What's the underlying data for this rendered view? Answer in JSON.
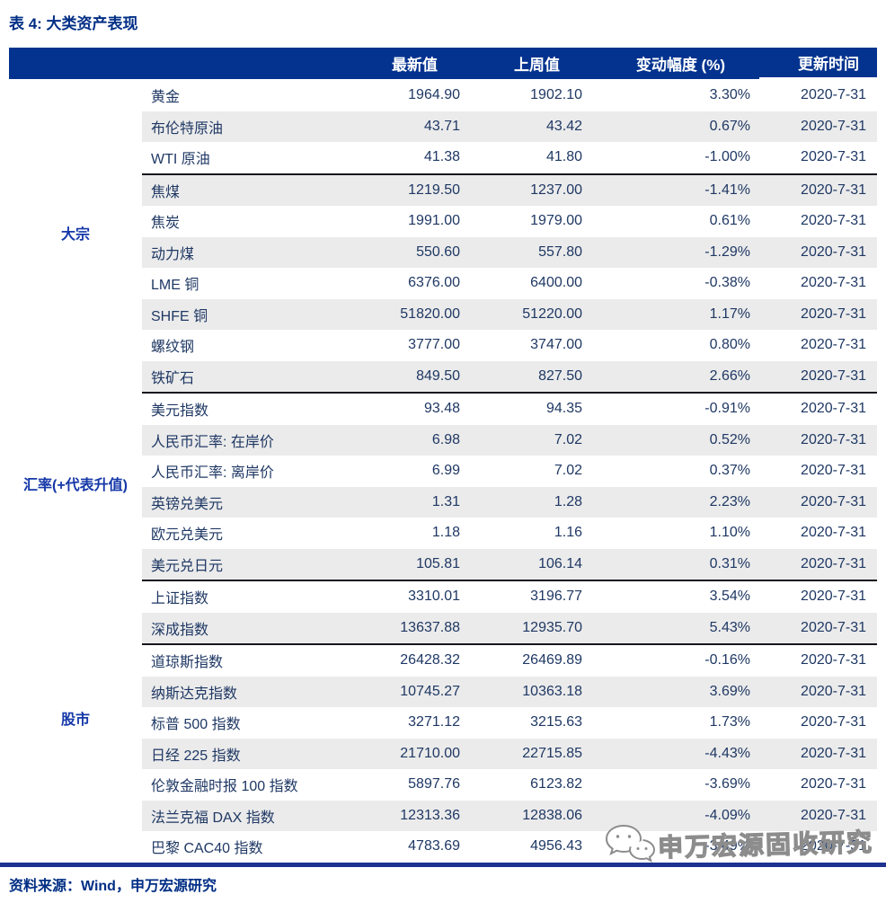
{
  "title": "表 4: 大类资产表现",
  "columns": {
    "latest": "最新值",
    "last_week": "上周值",
    "change": "变动幅度 (%)",
    "date": "更新时间"
  },
  "categories": [
    {
      "label": "大宗",
      "start": 0,
      "span": 10
    },
    {
      "label": "汇率(+代表升值)",
      "start": 10,
      "span": 6
    },
    {
      "label": "股市",
      "start": 16,
      "span": 9
    }
  ],
  "rows": [
    {
      "name": "黄金",
      "latest": "1964.90",
      "last_week": "1902.10",
      "change": "3.30%",
      "date": "2020-7-31"
    },
    {
      "name": "布伦特原油",
      "latest": "43.71",
      "last_week": "43.42",
      "change": "0.67%",
      "date": "2020-7-31"
    },
    {
      "name": "WTI 原油",
      "latest": "41.38",
      "last_week": "41.80",
      "change": "-1.00%",
      "date": "2020-7-31"
    },
    {
      "name": "焦煤",
      "latest": "1219.50",
      "last_week": "1237.00",
      "change": "-1.41%",
      "date": "2020-7-31",
      "sep": true
    },
    {
      "name": "焦炭",
      "latest": "1991.00",
      "last_week": "1979.00",
      "change": "0.61%",
      "date": "2020-7-31"
    },
    {
      "name": "动力煤",
      "latest": "550.60",
      "last_week": "557.80",
      "change": "-1.29%",
      "date": "2020-7-31"
    },
    {
      "name": "LME 铜",
      "latest": "6376.00",
      "last_week": "6400.00",
      "change": "-0.38%",
      "date": "2020-7-31"
    },
    {
      "name": "SHFE 铜",
      "latest": "51820.00",
      "last_week": "51220.00",
      "change": "1.17%",
      "date": "2020-7-31"
    },
    {
      "name": "螺纹钢",
      "latest": "3777.00",
      "last_week": "3747.00",
      "change": "0.80%",
      "date": "2020-7-31"
    },
    {
      "name": "铁矿石",
      "latest": "849.50",
      "last_week": "827.50",
      "change": "2.66%",
      "date": "2020-7-31"
    },
    {
      "name": "美元指数",
      "latest": "93.48",
      "last_week": "94.35",
      "change": "-0.91%",
      "date": "2020-7-31",
      "sep": true
    },
    {
      "name": "人民币汇率: 在岸价",
      "latest": "6.98",
      "last_week": "7.02",
      "change": "0.52%",
      "date": "2020-7-31"
    },
    {
      "name": "人民币汇率: 离岸价",
      "latest": "6.99",
      "last_week": "7.02",
      "change": "0.37%",
      "date": "2020-7-31"
    },
    {
      "name": "英镑兑美元",
      "latest": "1.31",
      "last_week": "1.28",
      "change": "2.23%",
      "date": "2020-7-31"
    },
    {
      "name": "欧元兑美元",
      "latest": "1.18",
      "last_week": "1.16",
      "change": "1.10%",
      "date": "2020-7-31"
    },
    {
      "name": "美元兑日元",
      "latest": "105.81",
      "last_week": "106.14",
      "change": "0.31%",
      "date": "2020-7-31"
    },
    {
      "name": "上证指数",
      "latest": "3310.01",
      "last_week": "3196.77",
      "change": "3.54%",
      "date": "2020-7-31",
      "sep": true
    },
    {
      "name": "深成指数",
      "latest": "13637.88",
      "last_week": "12935.70",
      "change": "5.43%",
      "date": "2020-7-31"
    },
    {
      "name": "道琼斯指数",
      "latest": "26428.32",
      "last_week": "26469.89",
      "change": "-0.16%",
      "date": "2020-7-31",
      "sep": true
    },
    {
      "name": "纳斯达克指数",
      "latest": "10745.27",
      "last_week": "10363.18",
      "change": "3.69%",
      "date": "2020-7-31"
    },
    {
      "name": "标普 500 指数",
      "latest": "3271.12",
      "last_week": "3215.63",
      "change": "1.73%",
      "date": "2020-7-31"
    },
    {
      "name": "日经 225 指数",
      "latest": "21710.00",
      "last_week": "22715.85",
      "change": "-4.43%",
      "date": "2020-7-31"
    },
    {
      "name": "伦敦金融时报 100 指数",
      "latest": "5897.76",
      "last_week": "6123.82",
      "change": "-3.69%",
      "date": "2020-7-31"
    },
    {
      "name": "法兰克福 DAX 指数",
      "latest": "12313.36",
      "last_week": "12838.06",
      "change": "-4.09%",
      "date": "2020-7-31"
    },
    {
      "name": "巴黎 CAC40 指数",
      "latest": "4783.69",
      "last_week": "4956.43",
      "change": "-3.49%",
      "date": "2020-7-31"
    }
  ],
  "source": "资料来源：Wind，申万宏源研究",
  "watermark": {
    "label": "申万宏源固收研究",
    "icon": "wechat-icon"
  },
  "colors": {
    "header_bg": "#03338F",
    "row_band": "#EBEBEB",
    "data_text": "#1F3864",
    "accent_text": "#002E85",
    "category_text": "#1538A8",
    "bottom_rule": "#1E3190",
    "section_separator": "#16161E",
    "watermark_gray": "#8C8C8C"
  }
}
